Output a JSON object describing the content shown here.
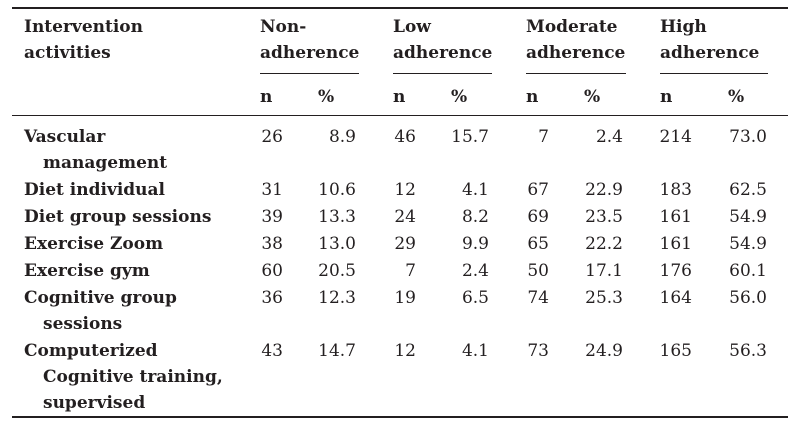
{
  "table": {
    "header": {
      "first_col_line1": "Intervention",
      "first_col_line2": "activities",
      "groups": [
        {
          "line1": "Non-",
          "line2": "adherence"
        },
        {
          "line1": "Low",
          "line2": "adherence"
        },
        {
          "line1": "Moderate",
          "line2": "adherence"
        },
        {
          "line1": "High",
          "line2": "adherence"
        }
      ],
      "sub_n": "n",
      "sub_pct": "%"
    },
    "rows": [
      {
        "line1": "Vascular",
        "line2": "management",
        "line3": "",
        "values": [
          "26",
          "8.9",
          "46",
          "15.7",
          "7",
          "2.4",
          "214",
          "73.0"
        ]
      },
      {
        "line1": "Diet individual",
        "line2": "",
        "line3": "",
        "values": [
          "31",
          "10.6",
          "12",
          "4.1",
          "67",
          "22.9",
          "183",
          "62.5"
        ]
      },
      {
        "line1": "Diet group sessions",
        "line2": "",
        "line3": "",
        "values": [
          "39",
          "13.3",
          "24",
          "8.2",
          "69",
          "23.5",
          "161",
          "54.9"
        ]
      },
      {
        "line1": "Exercise Zoom",
        "line2": "",
        "line3": "",
        "values": [
          "38",
          "13.0",
          "29",
          "9.9",
          "65",
          "22.2",
          "161",
          "54.9"
        ]
      },
      {
        "line1": "Exercise gym",
        "line2": "",
        "line3": "",
        "values": [
          "60",
          "20.5",
          "7",
          "2.4",
          "50",
          "17.1",
          "176",
          "60.1"
        ]
      },
      {
        "line1": "Cognitive group",
        "line2": "sessions",
        "line3": "",
        "values": [
          "36",
          "12.3",
          "19",
          "6.5",
          "74",
          "25.3",
          "164",
          "56.0"
        ]
      },
      {
        "line1": "Computerized",
        "line2": "Cognitive training,",
        "line3": "supervised",
        "values": [
          "43",
          "14.7",
          "12",
          "4.1",
          "73",
          "24.9",
          "165",
          "56.3"
        ]
      }
    ]
  }
}
